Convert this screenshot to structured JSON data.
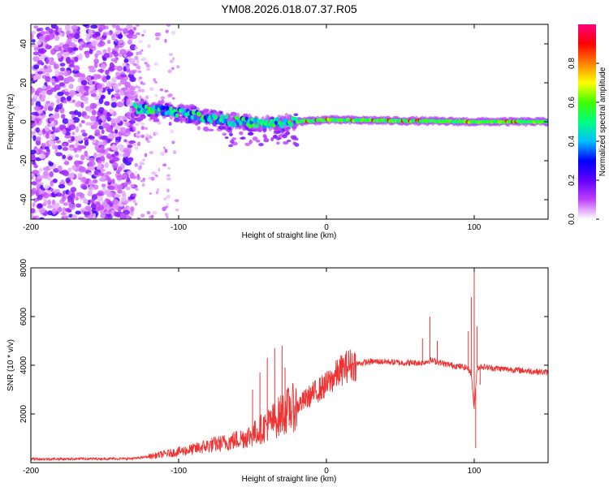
{
  "title": "YM08.2026.018.07.37.R05",
  "chart_data": [
    {
      "type": "heatmap",
      "name": "spectrogram",
      "xlabel": "Height of straight line (km)",
      "ylabel": "Frequency (Hz)",
      "xlim": [
        -200,
        150
      ],
      "ylim": [
        -50,
        50
      ],
      "xticks": [
        "-200",
        "-100",
        "0",
        "100"
      ],
      "xtick_values": [
        -200,
        -100,
        0,
        100
      ],
      "yticks": [
        "-40",
        "-20",
        "0",
        "20",
        "40"
      ],
      "ytick_values": [
        -40,
        -20,
        0,
        20,
        40
      ],
      "colorbar": {
        "label": "Normalized spectral amplitude",
        "range": [
          0,
          1
        ],
        "ticks": [
          "0.0",
          "0.2",
          "0.4",
          "0.6",
          "0.8"
        ],
        "tick_values": [
          0,
          0.2,
          0.4,
          0.6,
          0.8
        ],
        "colors": [
          "#ffffff",
          "#c040ff",
          "#6000ff",
          "#0000ff",
          "#00c0ff",
          "#00ff80",
          "#40ff00",
          "#ffff00",
          "#ff8000",
          "#ff0000",
          "#ff0080"
        ]
      },
      "regions": [
        {
          "description": "noise",
          "x_range": [
            -200,
            -130
          ],
          "freq_range": [
            -50,
            50
          ],
          "amplitude": 0.12
        },
        {
          "description": "sparse noise",
          "x_range": [
            -130,
            -100
          ],
          "freq_range": [
            -50,
            50
          ],
          "amplitude": 0.03
        },
        {
          "description": "signal trace",
          "x_range": [
            -130,
            150
          ],
          "freq_center": [
            [
              -130,
              7
            ],
            [
              -100,
              5
            ],
            [
              -80,
              2
            ],
            [
              -60,
              0
            ],
            [
              -40,
              -1
            ],
            [
              -20,
              0
            ],
            [
              0,
              1
            ],
            [
              50,
              0.5
            ],
            [
              100,
              0
            ],
            [
              150,
              0
            ]
          ],
          "amplitude": 0.7
        }
      ]
    },
    {
      "type": "line",
      "name": "snr",
      "xlabel": "Height of straight line (km)",
      "ylabel": "SNR (10 * v/v)",
      "xlim": [
        -200,
        150
      ],
      "ylim": [
        0,
        8000
      ],
      "xticks": [
        "-200",
        "-100",
        "0",
        "100"
      ],
      "xtick_values": [
        -200,
        -100,
        0,
        100
      ],
      "yticks": [
        "2000",
        "4000",
        "6000",
        "8000"
      ],
      "ytick_values": [
        2000,
        4000,
        6000,
        8000
      ],
      "color": "#ee3333",
      "x": [
        -200,
        -180,
        -160,
        -140,
        -130,
        -120,
        -110,
        -100,
        -90,
        -80,
        -70,
        -60,
        -50,
        -45,
        -40,
        -35,
        -30,
        -25,
        -20,
        -15,
        -10,
        -5,
        0,
        5,
        10,
        15,
        20,
        25,
        30,
        40,
        50,
        60,
        65,
        70,
        75,
        80,
        85,
        90,
        95,
        98,
        100,
        102,
        105,
        110,
        120,
        130,
        140,
        150
      ],
      "y": [
        150,
        150,
        160,
        160,
        170,
        250,
        350,
        450,
        550,
        700,
        800,
        950,
        1150,
        1350,
        1550,
        1750,
        2000,
        2200,
        2300,
        2550,
        2800,
        3000,
        3200,
        3500,
        3800,
        4000,
        4050,
        4100,
        4150,
        4150,
        4100,
        4100,
        4100,
        4200,
        4150,
        4050,
        4000,
        3950,
        3900,
        3700,
        2200,
        3900,
        3950,
        3900,
        3850,
        3800,
        3750,
        3700
      ],
      "spikes": [
        [
          -50,
          3000
        ],
        [
          -45,
          3700
        ],
        [
          -40,
          4300
        ],
        [
          -35,
          4700
        ],
        [
          -30,
          4800
        ],
        [
          -28,
          3900
        ],
        [
          65,
          5100
        ],
        [
          70,
          6000
        ],
        [
          75,
          5000
        ],
        [
          96,
          5400
        ],
        [
          98,
          6800
        ],
        [
          100,
          8100
        ],
        [
          101,
          600
        ],
        [
          102,
          5600
        ],
        [
          104,
          3200
        ]
      ]
    }
  ]
}
